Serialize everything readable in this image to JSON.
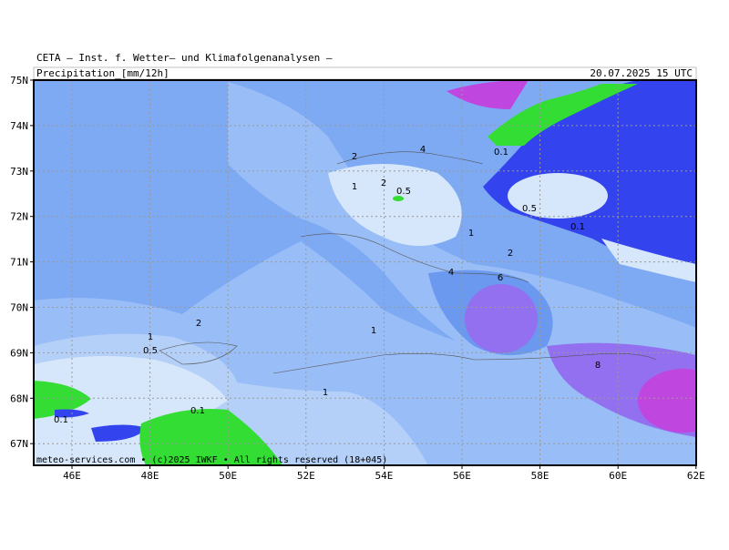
{
  "header": {
    "title": "CETA — Inst. f. Wetter— und Klimafolgenanalysen —",
    "subtitle": "Precipitation_[mm/12h]",
    "valid_time": "20.07.2025 15 UTC"
  },
  "map": {
    "lat_labels": [
      "75N",
      "74N",
      "73N",
      "72N",
      "71N",
      "70N",
      "69N",
      "68N",
      "67N"
    ],
    "lon_labels": [
      "46E",
      "48E",
      "50E",
      "52E",
      "54E",
      "56E",
      "58E",
      "60E",
      "62E"
    ],
    "contour_labels": [
      "2",
      "4",
      "1",
      "2",
      "0.5",
      "0.1",
      "0.5",
      "0.1",
      "1",
      "2",
      "4",
      "6",
      "2",
      "1",
      "0.5",
      "1",
      "1",
      "8",
      "0.1",
      "0.1"
    ]
  },
  "footer": {
    "credit": "meteo-services.com • (c)2025 IWKF • All rights reserved (18+045)"
  }
}
